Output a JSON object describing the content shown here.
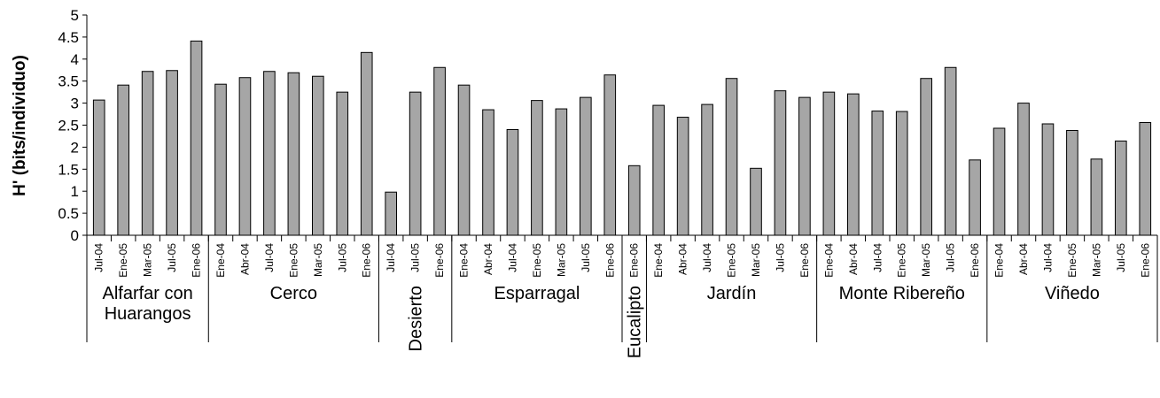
{
  "chart_data": {
    "type": "bar",
    "title": "",
    "ylabel": "H' (bits/individuo)",
    "xlabel": "",
    "ylim": [
      0,
      5
    ],
    "yticks": [
      "0",
      "0.5",
      "1",
      "1.5",
      "2",
      "2.5",
      "3",
      "3.5",
      "4",
      "4.5",
      "5"
    ],
    "grid": false,
    "bar_color": "#a6a6a6",
    "groups": [
      {
        "label_lines": [
          "Alfarfar con",
          "Huarangos"
        ],
        "vertical": false,
        "categories": [
          "Jul-04",
          "Ene-05",
          "Mar-05",
          "Jul-05",
          "Ene-06"
        ],
        "values": [
          3.07,
          3.41,
          3.72,
          3.74,
          4.41
        ]
      },
      {
        "label_lines": [
          "Cerco"
        ],
        "vertical": false,
        "categories": [
          "Ene-04",
          "Abr-04",
          "Jul-04",
          "Ene-05",
          "Mar-05",
          "Jul-05",
          "Ene-06"
        ],
        "values": [
          3.43,
          3.58,
          3.72,
          3.69,
          3.61,
          3.25,
          4.15
        ]
      },
      {
        "label_lines": [
          "Desierto"
        ],
        "vertical": true,
        "categories": [
          "Jul-04",
          "Jul-05",
          "Ene-06"
        ],
        "values": [
          0.98,
          3.25,
          3.81
        ]
      },
      {
        "label_lines": [
          "Esparragal"
        ],
        "vertical": false,
        "categories": [
          "Ene-04",
          "Abr-04",
          "Jul-04",
          "Ene-05",
          "Mar-05",
          "Jul-05",
          "Ene-06"
        ],
        "values": [
          3.41,
          2.85,
          2.4,
          3.06,
          2.87,
          3.13,
          3.64
        ]
      },
      {
        "label_lines": [
          "Eucalipto"
        ],
        "vertical": true,
        "categories": [
          "Ene-06"
        ],
        "values": [
          1.58
        ]
      },
      {
        "label_lines": [
          "Jardín"
        ],
        "vertical": false,
        "categories": [
          "Ene-04",
          "Abr-04",
          "Jul-04",
          "Ene-05",
          "Mar-05",
          "Jul-05",
          "Ene-06"
        ],
        "values": [
          2.95,
          2.68,
          2.97,
          3.56,
          1.52,
          3.28,
          3.13
        ]
      },
      {
        "label_lines": [
          "Monte Ribereño"
        ],
        "vertical": false,
        "categories": [
          "Ene-04",
          "Abr-04",
          "Jul-04",
          "Ene-05",
          "Mar-05",
          "Jul-05",
          "Ene-06"
        ],
        "values": [
          3.25,
          3.21,
          2.82,
          2.81,
          3.56,
          3.81,
          1.71
        ]
      },
      {
        "label_lines": [
          "Viñedo"
        ],
        "vertical": false,
        "categories": [
          "Ene-04",
          "Abr-04",
          "Jul-04",
          "Ene-05",
          "Mar-05",
          "Jul-05",
          "Ene-06"
        ],
        "values": [
          2.43,
          3.0,
          2.53,
          2.38,
          1.73,
          2.14,
          2.56
        ]
      }
    ]
  }
}
